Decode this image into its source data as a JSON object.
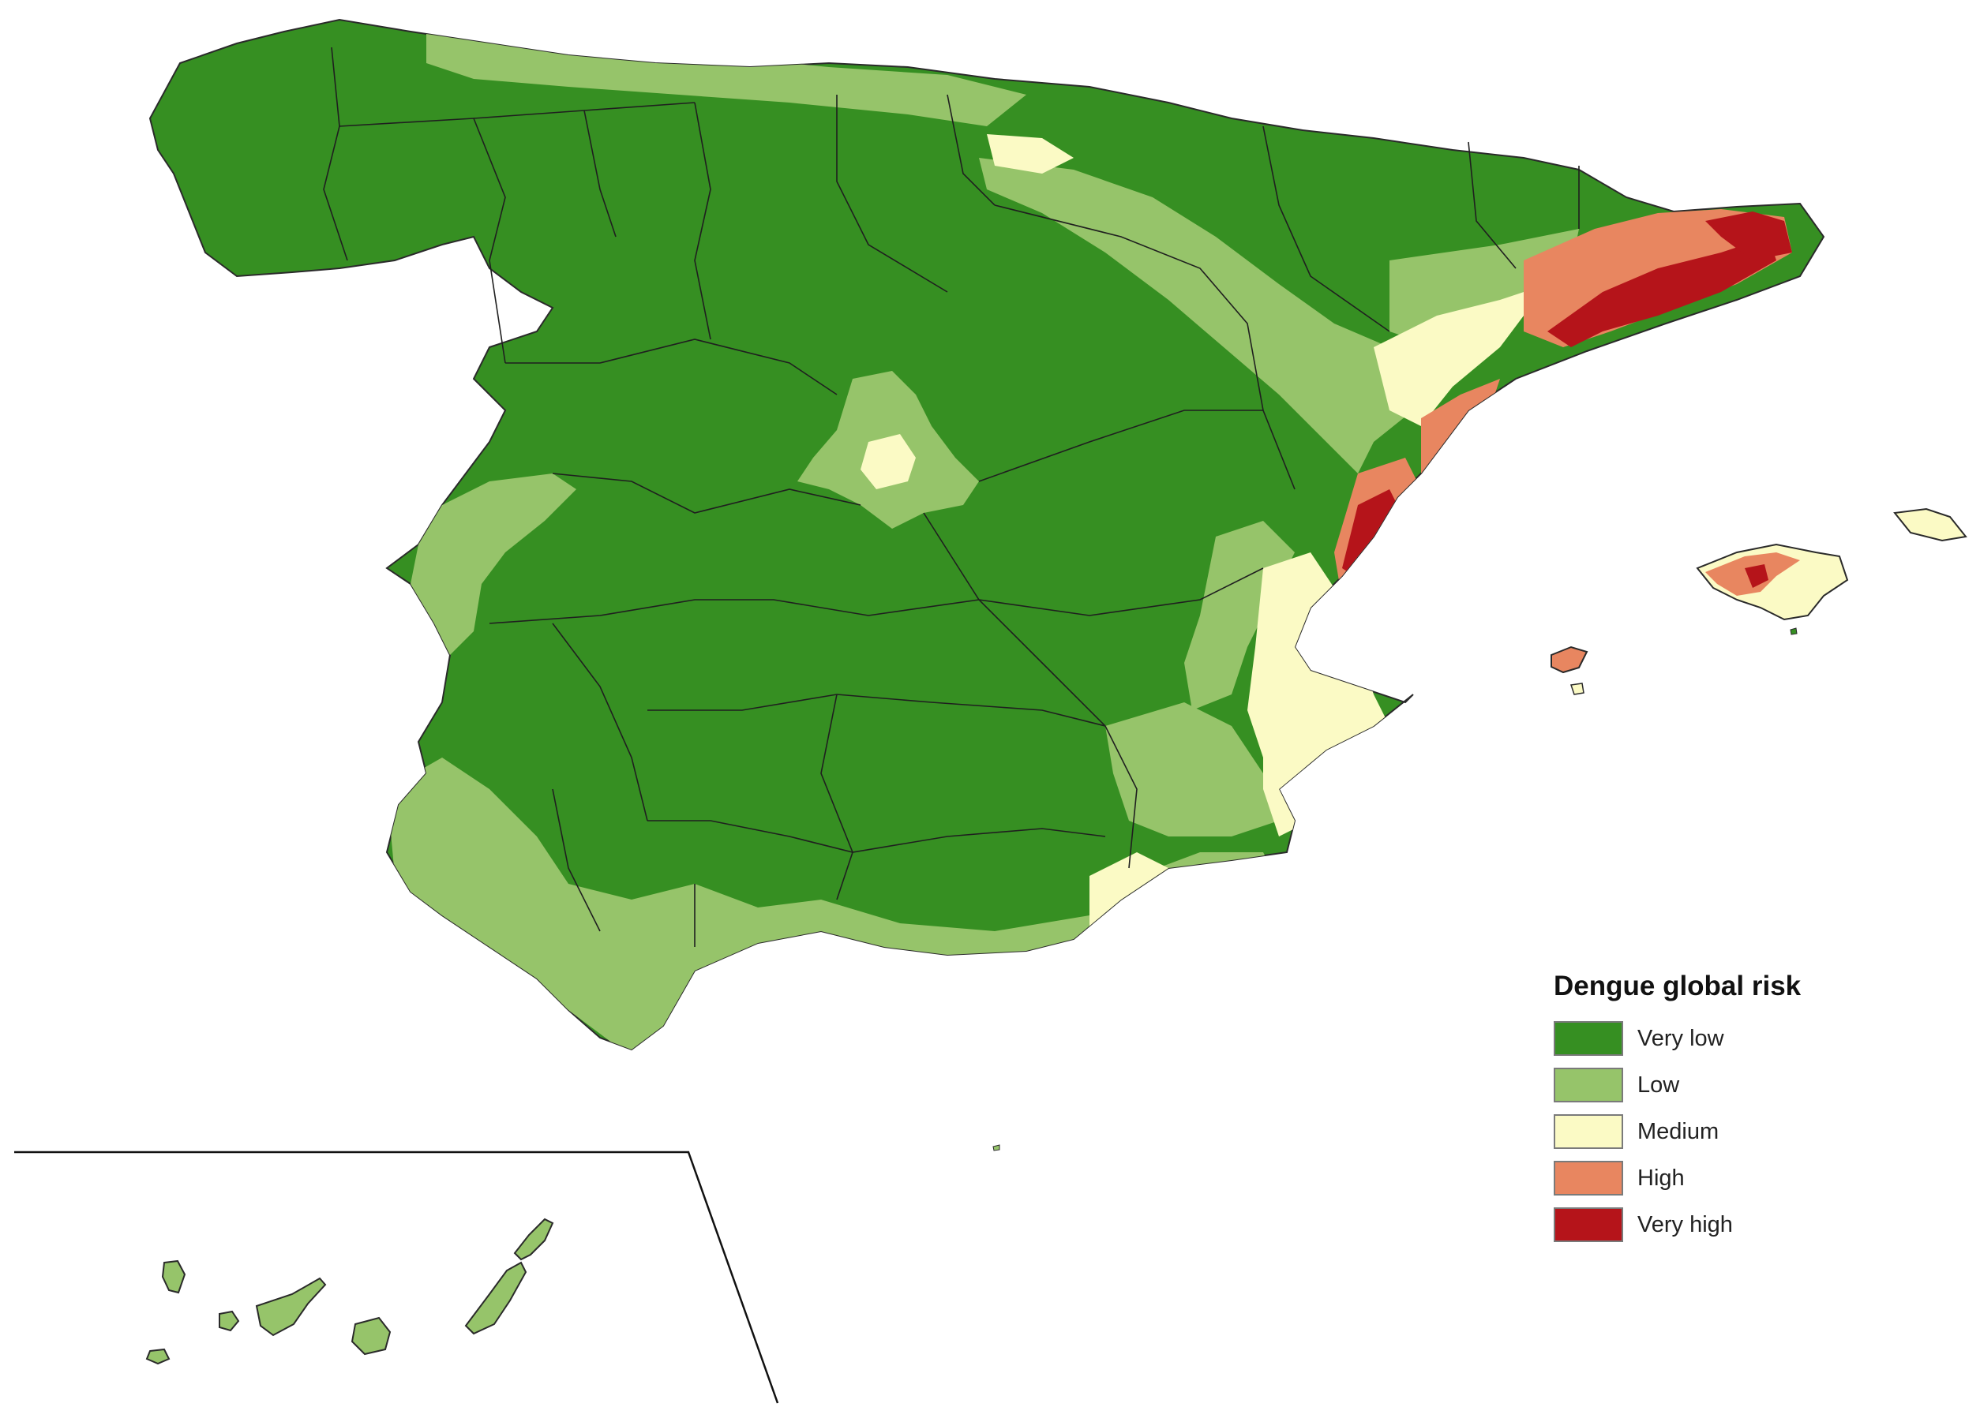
{
  "legend": {
    "title": "Dengue global risk",
    "items": [
      {
        "key": "very_low",
        "label": "Very low",
        "color": "#368f22"
      },
      {
        "key": "low",
        "label": "Low",
        "color": "#96c46a"
      },
      {
        "key": "medium",
        "label": "Medium",
        "color": "#fbfac5"
      },
      {
        "key": "high",
        "label": "High",
        "color": "#e88660"
      },
      {
        "key": "very_high",
        "label": "Very high",
        "color": "#b5141a"
      }
    ]
  },
  "colors": {
    "province_border": "#1f1f1f",
    "coastline": "#2a2a2a",
    "inset_frame": "#111111",
    "background": "#ffffff"
  }
}
